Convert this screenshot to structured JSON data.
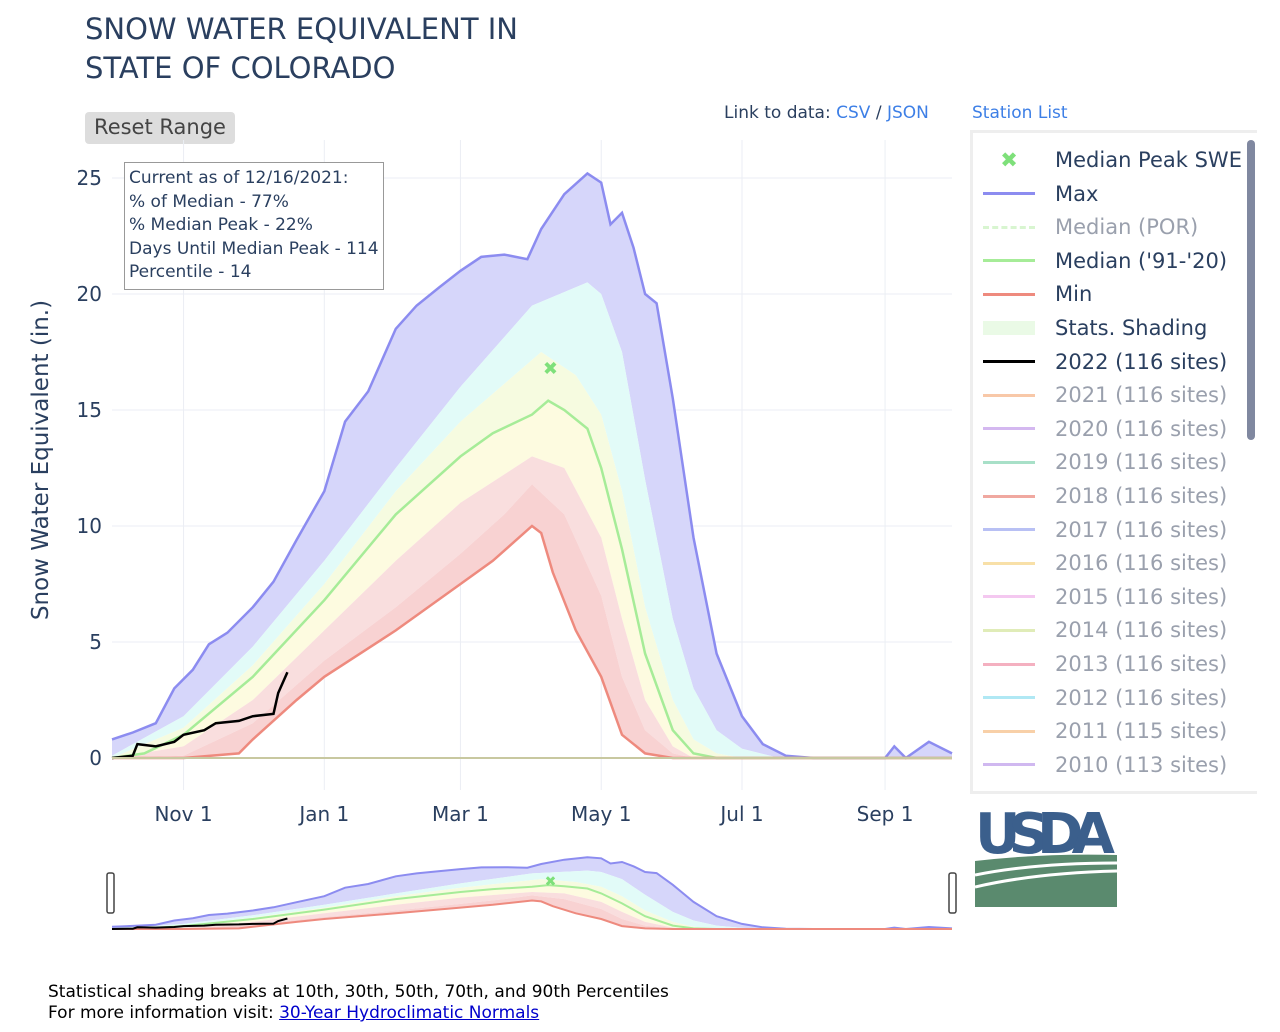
{
  "title": "SNOW WATER EQUIVALENT IN\nSTATE OF COLORADO",
  "reset_label": "Reset Range",
  "links": {
    "prefix": "Link to data: ",
    "csv": "CSV",
    "sep": " / ",
    "json": "JSON",
    "station_list": "Station List"
  },
  "info": [
    "Current as of 12/16/2021:",
    "% of Median - 77%",
    "% Median Peak - 22%",
    "Days Until Median Peak - 114",
    "Percentile - 14"
  ],
  "footer": {
    "line1": "Statistical shading breaks at 10th, 30th, 50th, 70th, and 90th Percentiles",
    "line2_prefix": "For more information visit: ",
    "link": "30-Year Hydroclimatic Normals"
  },
  "logo_text": "USDA",
  "legend": [
    {
      "label": "Median Peak SWE",
      "color": "#7ee07a",
      "style": "marker",
      "dim": false
    },
    {
      "label": "Max",
      "color": "#8c8cf0",
      "style": "line",
      "dim": false
    },
    {
      "label": "Median (POR)",
      "color": "#d8f5d0",
      "style": "dash",
      "dim": true
    },
    {
      "label": "Median ('91-'20)",
      "color": "#a6ec98",
      "style": "line",
      "dim": false
    },
    {
      "label": "Min",
      "color": "#ee8a7e",
      "style": "line",
      "dim": false
    },
    {
      "label": "Stats. Shading",
      "color": "#eafae6",
      "style": "block",
      "dim": false
    },
    {
      "label": "2022 (116 sites)",
      "color": "#000000",
      "style": "line",
      "dim": false
    },
    {
      "label": "2021 (116 sites)",
      "color": "#f8c8a8",
      "style": "line",
      "dim": true
    },
    {
      "label": "2020 (116 sites)",
      "color": "#d4b8f0",
      "style": "line",
      "dim": true
    },
    {
      "label": "2019 (116 sites)",
      "color": "#a8e0c8",
      "style": "line",
      "dim": true
    },
    {
      "label": "2018 (116 sites)",
      "color": "#f0a8a0",
      "style": "line",
      "dim": true
    },
    {
      "label": "2017 (116 sites)",
      "color": "#b8c0f4",
      "style": "line",
      "dim": true
    },
    {
      "label": "2016 (116 sites)",
      "color": "#f8e0a8",
      "style": "line",
      "dim": true
    },
    {
      "label": "2015 (116 sites)",
      "color": "#f4c8f0",
      "style": "line",
      "dim": true
    },
    {
      "label": "2014 (116 sites)",
      "color": "#e0ecb8",
      "style": "line",
      "dim": true
    },
    {
      "label": "2013 (116 sites)",
      "color": "#f4b0c0",
      "style": "line",
      "dim": true
    },
    {
      "label": "2012 (116 sites)",
      "color": "#b0e8f4",
      "style": "line",
      "dim": true
    },
    {
      "label": "2011 (115 sites)",
      "color": "#f8d0a8",
      "style": "line",
      "dim": true
    },
    {
      "label": "2010 (113 sites)",
      "color": "#d0b8f0",
      "style": "line",
      "dim": true
    }
  ],
  "chart_data": {
    "type": "area",
    "ylabel": "Snow Water Equivalent (in.)",
    "xlim": [
      "2021-10-01",
      "2022-09-30"
    ],
    "ylim": [
      -1.3,
      26.5
    ],
    "xticks": [
      {
        "date": "2021-11-01",
        "label": "Nov  1"
      },
      {
        "date": "2022-01-01",
        "label": "Jan  1"
      },
      {
        "date": "2022-03-01",
        "label": "Mar  1"
      },
      {
        "date": "2022-05-01",
        "label": "May  1"
      },
      {
        "date": "2022-07-01",
        "label": "Jul  1"
      },
      {
        "date": "2022-09-01",
        "label": "Sep  1"
      }
    ],
    "yticks": [
      0,
      5,
      10,
      15,
      20,
      25
    ],
    "grid": true,
    "legend_position": "right",
    "colors": {
      "max": "#8c8cf0",
      "median": "#a6ec98",
      "min": "#ee8a7e",
      "current": "#000000",
      "band_max_p90": "#d6d6fa",
      "band_p90_p70": "#e2fbf8",
      "band_p70_p50": "#f6fbe0",
      "band_p50_p30": "#fdfbe0",
      "band_p30_p10": "#f9dede",
      "band_p10_min": "#f8d2d2"
    },
    "median_peak": {
      "date": "2022-04-09",
      "value": 16.8
    },
    "series": {
      "max": {
        "dates": [
          "2021-10-01",
          "2021-10-10",
          "2021-10-20",
          "2021-10-28",
          "2021-11-05",
          "2021-11-12",
          "2021-11-20",
          "2021-12-01",
          "2021-12-10",
          "2021-12-20",
          "2022-01-01",
          "2022-01-10",
          "2022-01-20",
          "2022-02-01",
          "2022-02-10",
          "2022-02-20",
          "2022-03-01",
          "2022-03-10",
          "2022-03-20",
          "2022-03-30",
          "2022-04-05",
          "2022-04-15",
          "2022-04-25",
          "2022-05-01",
          "2022-05-05",
          "2022-05-10",
          "2022-05-15",
          "2022-05-20",
          "2022-05-25",
          "2022-06-01",
          "2022-06-10",
          "2022-06-20",
          "2022-07-01",
          "2022-07-10",
          "2022-07-20",
          "2022-08-01",
          "2022-09-01",
          "2022-09-05",
          "2022-09-10",
          "2022-09-20",
          "2022-09-30"
        ],
        "values": [
          0.8,
          1.1,
          1.5,
          3.0,
          3.8,
          4.9,
          5.4,
          6.5,
          7.6,
          9.4,
          11.5,
          14.5,
          15.8,
          18.5,
          19.5,
          20.3,
          21.0,
          21.6,
          21.7,
          21.5,
          22.8,
          24.3,
          25.2,
          24.8,
          23.0,
          23.5,
          22.0,
          20.0,
          19.6,
          15.5,
          9.5,
          4.5,
          1.8,
          0.6,
          0.1,
          0,
          0,
          0.5,
          0,
          0.7,
          0.2
        ]
      },
      "p90": {
        "dates": [
          "2021-10-01",
          "2021-11-01",
          "2021-12-01",
          "2022-01-01",
          "2022-02-01",
          "2022-03-01",
          "2022-04-01",
          "2022-04-25",
          "2022-05-01",
          "2022-05-10",
          "2022-05-20",
          "2022-06-01",
          "2022-06-10",
          "2022-06-20",
          "2022-07-01",
          "2022-07-15",
          "2022-08-01",
          "2022-09-30"
        ],
        "values": [
          0.1,
          1.8,
          4.8,
          8.5,
          12.5,
          16.0,
          19.5,
          20.5,
          20.0,
          17.5,
          12.0,
          6.0,
          3.0,
          1.2,
          0.4,
          0.05,
          0,
          0
        ]
      },
      "p70": {
        "dates": [
          "2021-10-01",
          "2021-11-01",
          "2021-12-01",
          "2022-01-01",
          "2022-02-01",
          "2022-03-01",
          "2022-04-05",
          "2022-04-20",
          "2022-05-01",
          "2022-05-10",
          "2022-05-20",
          "2022-06-01",
          "2022-06-10",
          "2022-06-20",
          "2022-07-01",
          "2022-09-30"
        ],
        "values": [
          0,
          1.3,
          4.0,
          7.5,
          11.5,
          14.5,
          17.5,
          16.5,
          14.8,
          11.5,
          6.5,
          2.5,
          0.8,
          0.2,
          0,
          0
        ]
      },
      "median": {
        "dates": [
          "2021-10-01",
          "2021-10-15",
          "2021-11-01",
          "2021-12-01",
          "2022-01-01",
          "2022-02-01",
          "2022-03-01",
          "2022-03-15",
          "2022-04-01",
          "2022-04-08",
          "2022-04-15",
          "2022-04-25",
          "2022-05-01",
          "2022-05-10",
          "2022-05-20",
          "2022-06-01",
          "2022-06-10",
          "2022-06-20",
          "2022-09-30"
        ],
        "values": [
          0,
          0.2,
          1.0,
          3.5,
          6.8,
          10.5,
          13.0,
          14.0,
          14.8,
          15.4,
          15.0,
          14.2,
          12.5,
          9.0,
          4.5,
          1.2,
          0.2,
          0,
          0
        ]
      },
      "p30": {
        "dates": [
          "2021-10-01",
          "2021-11-01",
          "2021-12-01",
          "2022-01-01",
          "2022-02-01",
          "2022-03-01",
          "2022-04-01",
          "2022-04-15",
          "2022-05-01",
          "2022-05-10",
          "2022-05-20",
          "2022-06-01",
          "2022-06-10",
          "2022-09-30"
        ],
        "values": [
          0,
          0.5,
          2.5,
          5.5,
          8.5,
          11.0,
          13.0,
          12.5,
          9.5,
          6.0,
          2.5,
          0.5,
          0,
          0
        ]
      },
      "p10": {
        "dates": [
          "2021-10-01",
          "2021-11-01",
          "2021-12-01",
          "2022-01-01",
          "2022-02-01",
          "2022-03-01",
          "2022-03-20",
          "2022-04-01",
          "2022-04-15",
          "2022-05-01",
          "2022-05-10",
          "2022-05-20",
          "2022-06-01",
          "2022-06-10",
          "2022-09-30"
        ],
        "values": [
          0,
          0.1,
          1.5,
          4.2,
          6.5,
          8.8,
          10.5,
          11.8,
          10.5,
          7.0,
          3.5,
          1.2,
          0.2,
          0,
          0
        ]
      },
      "min": {
        "dates": [
          "2021-10-01",
          "2021-11-01",
          "2021-11-25",
          "2021-12-01",
          "2021-12-20",
          "2022-01-01",
          "2022-02-01",
          "2022-03-01",
          "2022-03-15",
          "2022-04-01",
          "2022-04-05",
          "2022-04-10",
          "2022-04-20",
          "2022-05-01",
          "2022-05-10",
          "2022-05-20",
          "2022-06-01",
          "2022-09-30"
        ],
        "values": [
          0,
          0,
          0.2,
          0.8,
          2.5,
          3.5,
          5.5,
          7.5,
          8.5,
          10.0,
          9.7,
          8.0,
          5.5,
          3.5,
          1.0,
          0.2,
          0,
          0
        ]
      },
      "current": {
        "dates": [
          "2021-10-01",
          "2021-10-10",
          "2021-10-12",
          "2021-10-20",
          "2021-10-28",
          "2021-11-01",
          "2021-11-10",
          "2021-11-15",
          "2021-11-25",
          "2021-12-01",
          "2021-12-10",
          "2021-12-12",
          "2021-12-16"
        ],
        "values": [
          0,
          0.1,
          0.6,
          0.5,
          0.7,
          1.0,
          1.2,
          1.5,
          1.6,
          1.8,
          1.9,
          2.8,
          3.7
        ]
      }
    }
  }
}
